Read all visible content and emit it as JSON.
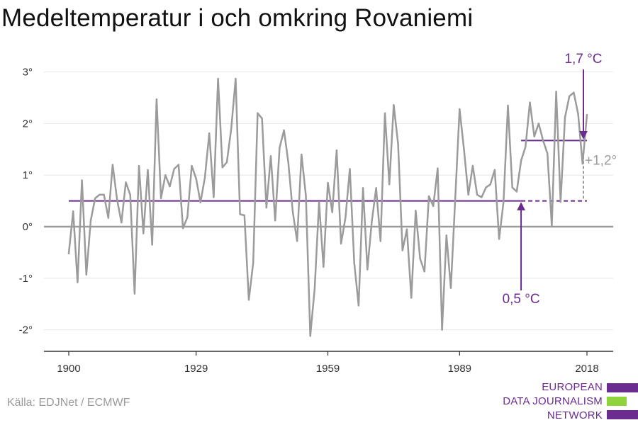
{
  "title": "Medeltemperatur i och omkring Rovaniemi",
  "source": "Källa: EDJNet / ECMWF",
  "logo": {
    "line1": "EUROPEAN",
    "line2": "DATA JOURNALISM",
    "line3": "NETWORK"
  },
  "colors": {
    "series": "#9b9b9b",
    "mean": "#6a2d8f",
    "zero": "#9b9b9b",
    "grid": "#e6e6e6",
    "logo_green": "#8fd43c"
  },
  "chart_data": {
    "type": "line",
    "title": "Medeltemperatur i och omkring Rovaniemi",
    "xlabel": "",
    "ylabel": "",
    "xlim": [
      1900,
      2018
    ],
    "ylim": [
      -2.4,
      3.2
    ],
    "grid": true,
    "x_ticks": [
      1900,
      1929,
      1959,
      1989,
      2018
    ],
    "y_ticks": [
      {
        "value": 3,
        "label": "3°"
      },
      {
        "value": 2,
        "label": "2°"
      },
      {
        "value": 1,
        "label": "1°"
      },
      {
        "value": 0,
        "label": "0°"
      },
      {
        "value": -1,
        "label": "-1°"
      },
      {
        "value": -2,
        "label": "-2°"
      }
    ],
    "series": [
      {
        "x": [
          1900,
          1901,
          1902,
          1903,
          1904,
          1905,
          1906,
          1907,
          1908,
          1909,
          1910,
          1911,
          1912,
          1913,
          1914,
          1915,
          1916,
          1917,
          1918,
          1919,
          1920,
          1921,
          1922,
          1923,
          1924,
          1925,
          1926,
          1927,
          1928,
          1929,
          1930,
          1931,
          1932,
          1933,
          1934,
          1935,
          1936,
          1937,
          1938,
          1939,
          1940,
          1941,
          1942,
          1943,
          1944,
          1945,
          1946,
          1947,
          1948,
          1949,
          1950,
          1951,
          1952,
          1953,
          1954,
          1955,
          1956,
          1957,
          1958,
          1959,
          1960,
          1961,
          1962,
          1963,
          1964,
          1965,
          1966,
          1967,
          1968,
          1969,
          1970,
          1971,
          1972,
          1973,
          1974,
          1975,
          1976,
          1977,
          1978,
          1979,
          1980,
          1981,
          1982,
          1983,
          1984,
          1985,
          1986,
          1987,
          1988,
          1989,
          1990,
          1991,
          1992,
          1993,
          1994,
          1995,
          1996,
          1997,
          1998,
          1999,
          2000,
          2001,
          2002,
          2003,
          2004,
          2005,
          2006,
          2007,
          2008,
          2009,
          2010,
          2011,
          2012,
          2013,
          2014,
          2015,
          2016,
          2017,
          2018
        ],
        "values": [
          -0.52,
          0.3,
          -1.08,
          0.9,
          -0.93,
          0.12,
          0.55,
          0.62,
          0.62,
          0.17,
          1.2,
          0.53,
          0.08,
          0.86,
          0.62,
          -1.3,
          1.18,
          -0.13,
          1.1,
          -0.35,
          2.47,
          0.55,
          1.0,
          0.78,
          1.12,
          1.2,
          -0.03,
          0.18,
          1.18,
          0.93,
          0.47,
          0.95,
          1.81,
          0.57,
          2.87,
          1.15,
          1.25,
          1.9,
          2.87,
          0.24,
          0.22,
          -1.42,
          -0.7,
          2.2,
          2.1,
          0.37,
          1.37,
          0.12,
          1.53,
          1.87,
          1.25,
          0.3,
          -0.28,
          1.4,
          0.6,
          -2.12,
          -1.2,
          0.48,
          -0.78,
          0.85,
          0.28,
          1.48,
          -0.33,
          0.17,
          1.12,
          -0.7,
          -1.53,
          0.75,
          -0.83,
          0.09,
          0.75,
          -0.28,
          2.2,
          0.82,
          2.36,
          1.6,
          -0.46,
          -0.05,
          -1.38,
          0.31,
          -0.62,
          -0.87,
          0.59,
          0.4,
          1.13,
          -2.0,
          -0.17,
          -1.19,
          0.55,
          2.28,
          1.5,
          0.62,
          1.18,
          0.62,
          0.57,
          0.76,
          0.82,
          1.1,
          -0.24,
          0.48,
          2.35,
          0.76,
          0.68,
          1.28,
          1.55,
          2.41,
          1.75,
          2.0,
          1.67,
          1.42,
          0.02,
          2.62,
          0.48,
          2.12,
          2.53,
          2.6,
          2.18,
          1.22,
          2.17
        ]
      }
    ],
    "reference_lines": [
      {
        "from": 1900,
        "to": 2003,
        "value": 0.5,
        "style": "solid"
      },
      {
        "from": 2003,
        "to": 2018,
        "value": 0.5,
        "style": "dashed"
      },
      {
        "from": 2003,
        "to": 2018,
        "value": 1.67,
        "style": "solid"
      }
    ],
    "annotations": {
      "recent": {
        "label": "1,7 °C",
        "x": 2018,
        "value": 1.67
      },
      "baseline": {
        "label": "0,5 °C",
        "x": 2003,
        "value": 0.5
      },
      "difference": {
        "label": "+1,2°"
      }
    }
  }
}
